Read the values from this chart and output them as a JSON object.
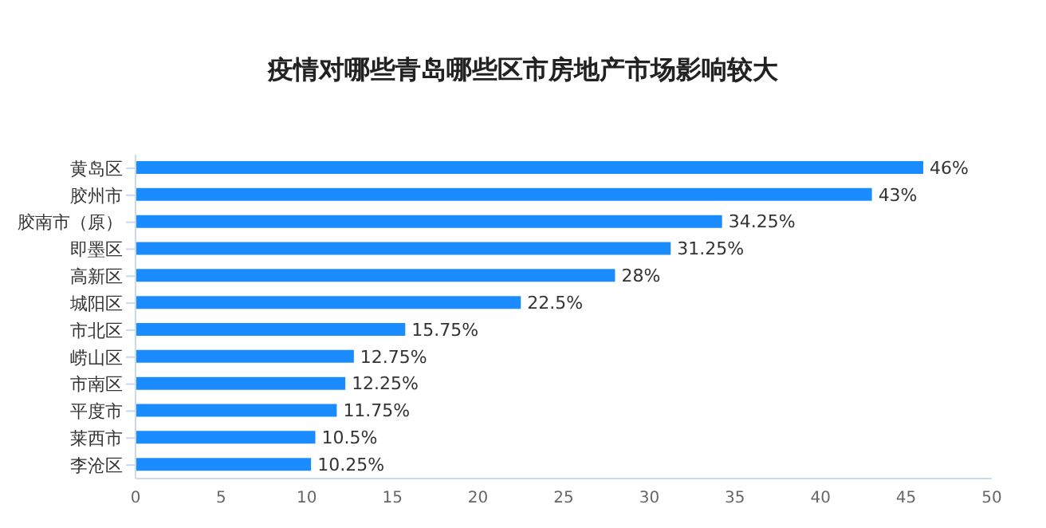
{
  "chart_data": {
    "type": "bar",
    "orientation": "horizontal",
    "title": "疫情对哪些青岛哪些区市房地产市场影响较大",
    "categories": [
      "黄岛区",
      "胶州市",
      "胶南市（原）",
      "即墨区",
      "高新区",
      "城阳区",
      "市北区",
      "崂山区",
      "市南区",
      "平度市",
      "莱西市",
      "李沧区"
    ],
    "values": [
      46,
      43,
      34.25,
      31.25,
      28,
      22.5,
      15.75,
      12.75,
      12.25,
      11.75,
      10.5,
      10.25
    ],
    "value_labels": [
      "46%",
      "43%",
      "34.25%",
      "31.25%",
      "28%",
      "22.5%",
      "15.75%",
      "12.75%",
      "12.25%",
      "11.75%",
      "10.5%",
      "10.25%"
    ],
    "color": "#1a8cff",
    "xlim": [
      0,
      50
    ],
    "xticks": [
      0,
      5,
      10,
      15,
      20,
      25,
      30,
      35,
      40,
      45,
      50
    ],
    "grid": false
  }
}
